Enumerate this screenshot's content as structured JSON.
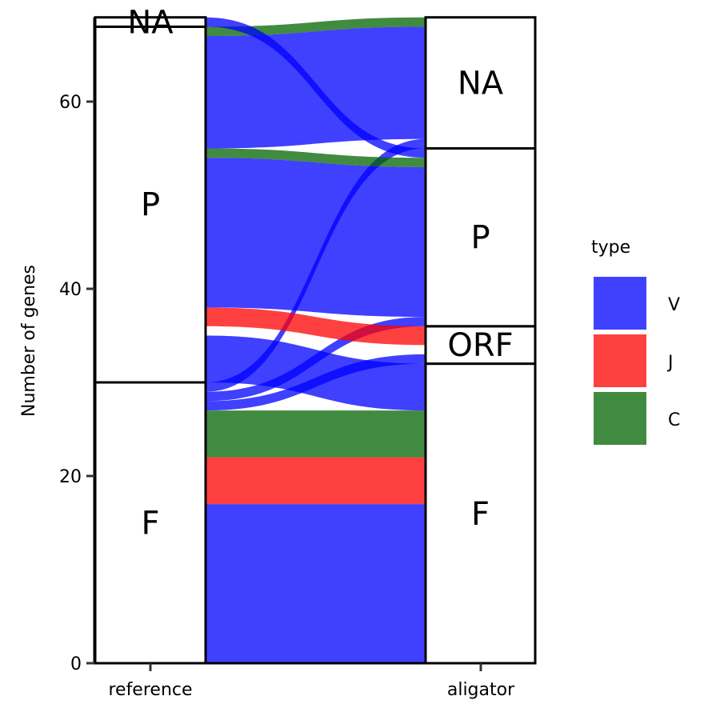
{
  "chart_data": {
    "type": "alluvial",
    "ylabel": "Number of genes",
    "ylim": [
      0,
      69
    ],
    "yticks": [
      0,
      20,
      40,
      60
    ],
    "axes": [
      "reference",
      "aligator"
    ],
    "strata": {
      "reference": [
        {
          "label": "F",
          "from": 0,
          "to": 30
        },
        {
          "label": "P",
          "from": 30,
          "to": 68
        },
        {
          "label": "NA",
          "from": 68,
          "to": 69
        }
      ],
      "aligator": [
        {
          "label": "F",
          "from": 0,
          "to": 32
        },
        {
          "label": "ORF",
          "from": 32,
          "to": 36
        },
        {
          "label": "P",
          "from": 36,
          "to": 55
        },
        {
          "label": "NA",
          "from": 55,
          "to": 69
        }
      ]
    },
    "flows": [
      {
        "type": "V",
        "ref": [
          0,
          17
        ],
        "ali": [
          0,
          17
        ]
      },
      {
        "type": "J",
        "ref": [
          17,
          22
        ],
        "ali": [
          17,
          22
        ]
      },
      {
        "type": "C",
        "ref": [
          22,
          27
        ],
        "ali": [
          22,
          27
        ]
      },
      {
        "type": "V",
        "ref": [
          27,
          28
        ],
        "ali": [
          32,
          33
        ]
      },
      {
        "type": "V",
        "ref": [
          28,
          29
        ],
        "ali": [
          36,
          37
        ]
      },
      {
        "type": "V",
        "ref": [
          29,
          30
        ],
        "ali": [
          55,
          56
        ]
      },
      {
        "type": "V",
        "ref": [
          30,
          35
        ],
        "ali": [
          27,
          32
        ]
      },
      {
        "type": "J",
        "ref": [
          36,
          38
        ],
        "ali": [
          34,
          36
        ]
      },
      {
        "type": "V",
        "ref": [
          38,
          54
        ],
        "ali": [
          37,
          53
        ]
      },
      {
        "type": "C",
        "ref": [
          54,
          55
        ],
        "ali": [
          53,
          54
        ]
      },
      {
        "type": "V",
        "ref": [
          55,
          67
        ],
        "ali": [
          56,
          68
        ]
      },
      {
        "type": "C",
        "ref": [
          67,
          68
        ],
        "ali": [
          68,
          69
        ]
      },
      {
        "type": "V",
        "ref": [
          68,
          69
        ],
        "ali": [
          54,
          55
        ]
      }
    ],
    "legend": {
      "title": "type",
      "placement": "right",
      "items": [
        {
          "label": "V",
          "color": "#0000FF"
        },
        {
          "label": "J",
          "color": "#FF0000"
        },
        {
          "label": "C",
          "color": "#006400"
        }
      ]
    }
  }
}
